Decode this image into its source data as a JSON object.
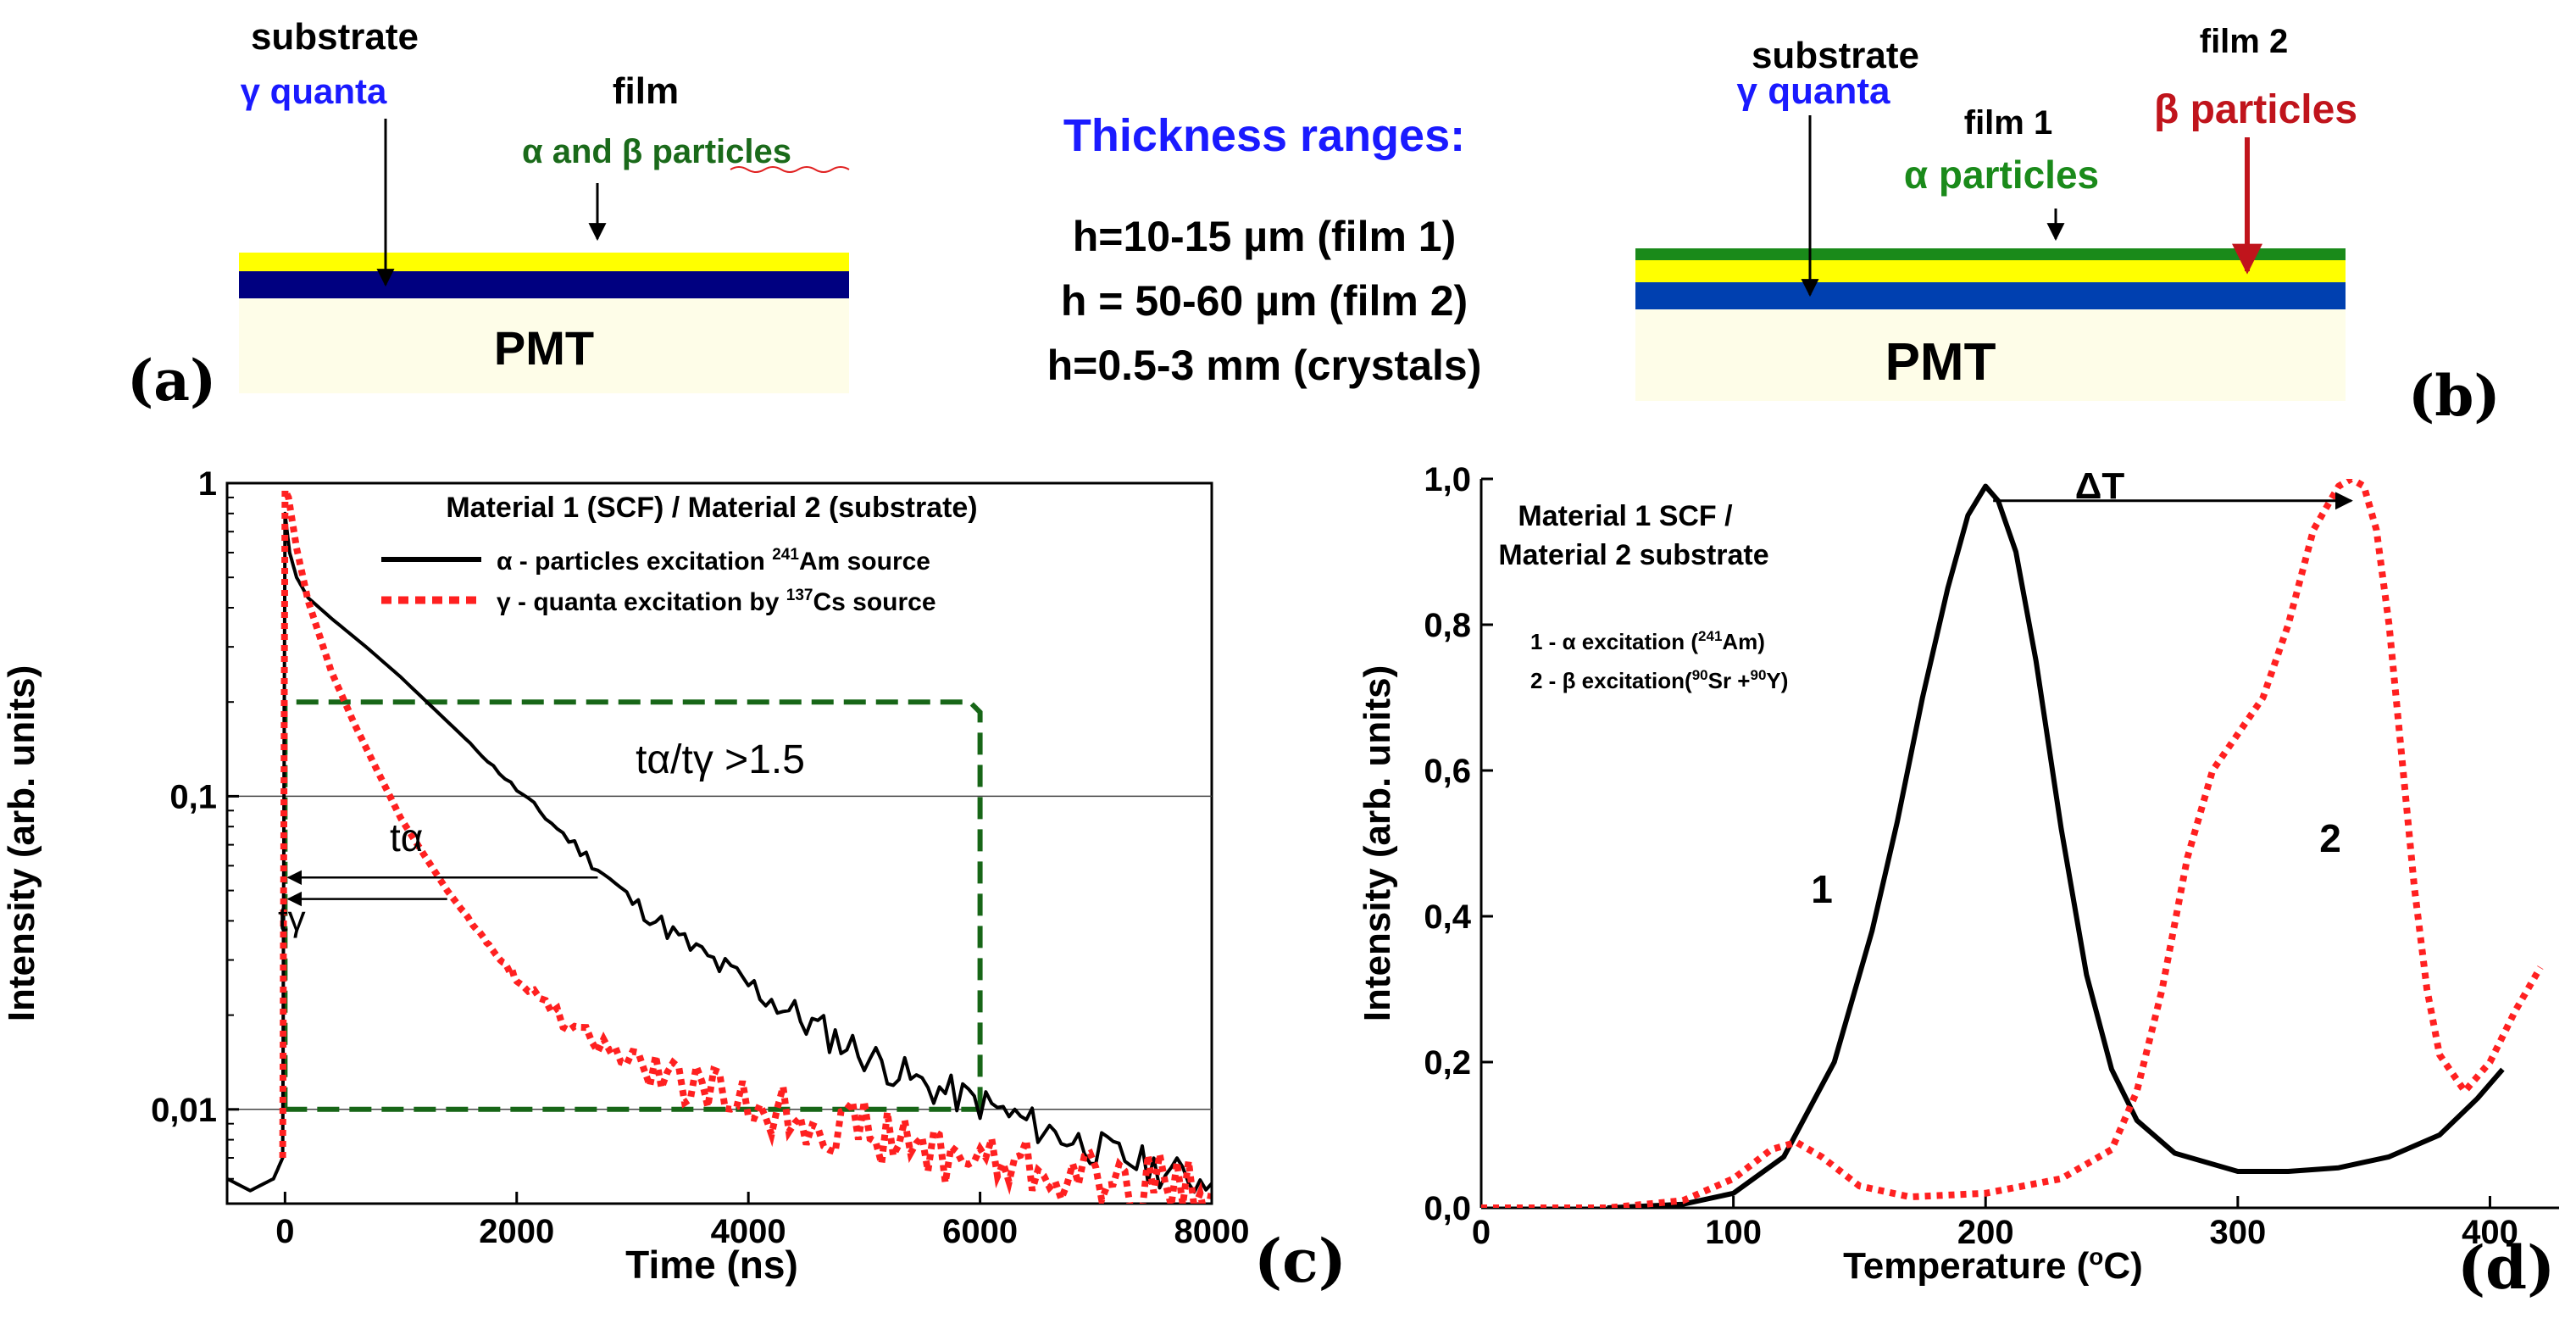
{
  "panel_a": {
    "label": "(a)",
    "substrate": "substrate",
    "gamma": "γ quanta",
    "film": "film",
    "alpha_beta": "α  and β particles",
    "pmt": "PMT"
  },
  "center": {
    "title": "Thickness ranges:",
    "lines": [
      "h=10-15 µm (film 1)",
      "h = 50-60 µm (film 2)",
      "h=0.5-3 mm (crystals)"
    ]
  },
  "panel_b": {
    "label": "(b)",
    "substrate": "substrate",
    "gamma": "γ quanta",
    "film1": "film 1",
    "film2": "film 2",
    "alpha": "α particles",
    "beta": "β particles",
    "pmt": "PMT"
  },
  "colors": {
    "blue_text": "#1a1aff",
    "green": "#1a8a1a",
    "red": "#c0141c",
    "yellow": "#ffff00",
    "navy": "#000080",
    "pmt": "#fefde8",
    "dash_green": "#176617",
    "red_curve": "#ff2020"
  },
  "chart_data": [
    {
      "id": "c",
      "type": "line",
      "panel_label": "(c)",
      "title": "Material 1 (SCF) / Material 2 (substrate)",
      "xlabel": "Time (ns)",
      "ylabel": "Intensity (arb. units)",
      "yscale": "log",
      "xlim": [
        -500,
        8000
      ],
      "ylim": [
        0.005,
        1
      ],
      "xticks": [
        0,
        2000,
        4000,
        6000,
        8000
      ],
      "xtick_labels": [
        "0",
        "2000",
        "4000",
        "6000",
        "8000"
      ],
      "yticks": [
        0.01,
        0.1,
        1
      ],
      "ytick_labels": [
        "0,01",
        "0,1",
        "1"
      ],
      "legend": [
        {
          "sym": "α",
          "pre": " - particles excitation ",
          "sup": "241",
          "post": "Am source",
          "style": "solid-black"
        },
        {
          "sym": "γ",
          "pre": " - quanta excitation by ",
          "sup": "137",
          "post": "Cs source",
          "style": "dotted-red"
        }
      ],
      "annotations": {
        "ratio": "tα/tγ >1.5",
        "t_alpha": "tα",
        "t_gamma": "tγ",
        "t_alpha_end_ns": 2700,
        "t_gamma_end_ns": 1400,
        "t_alpha_level": 0.055,
        "t_gamma_level": 0.05,
        "box_x": [
          0,
          6000
        ],
        "box_y": [
          0.01,
          0.2
        ]
      },
      "series": [
        {
          "name": "α - particles excitation 241Am source",
          "x": [
            -500,
            -300,
            -100,
            -20,
            0,
            40,
            100,
            200,
            400,
            700,
            1000,
            1500,
            2000,
            2500,
            3000,
            3500,
            4000,
            4500,
            5000,
            5500,
            6000,
            6500,
            7000,
            7500,
            8000
          ],
          "y": [
            0.006,
            0.0055,
            0.006,
            0.007,
            0.8,
            0.6,
            0.5,
            0.43,
            0.37,
            0.3,
            0.24,
            0.16,
            0.105,
            0.07,
            0.046,
            0.033,
            0.025,
            0.019,
            0.015,
            0.012,
            0.0105,
            0.0088,
            0.0075,
            0.0065,
            0.0058
          ]
        },
        {
          "name": "γ - quanta excitation by 137Cs source",
          "x": [
            -20,
            0,
            30,
            100,
            200,
            400,
            600,
            800,
            1000,
            1200,
            1400,
            1600,
            1800,
            2000,
            2500,
            3000,
            3500,
            4000,
            4500,
            5000,
            5500,
            6000,
            6500,
            7000,
            7500,
            8000
          ],
          "y": [
            0.007,
            0.95,
            0.9,
            0.62,
            0.42,
            0.25,
            0.17,
            0.12,
            0.085,
            0.065,
            0.05,
            0.04,
            0.032,
            0.026,
            0.018,
            0.014,
            0.012,
            0.0105,
            0.0095,
            0.0085,
            0.0075,
            0.007,
            0.0065,
            0.006,
            0.0058,
            0.0055
          ]
        }
      ]
    },
    {
      "id": "d",
      "type": "line",
      "panel_label": "(d)",
      "title_lines": [
        "Material 1 SCF /",
        "Material 2 substrate"
      ],
      "xlabel_pre": "Temperature (",
      "xlabel_sup": "o",
      "xlabel_post": "C)",
      "ylabel": "Intensity (arb. units)",
      "xlim": [
        0,
        420
      ],
      "ylim": [
        0,
        1.0
      ],
      "xticks": [
        0,
        100,
        200,
        300,
        400
      ],
      "xtick_labels": [
        "0",
        "100",
        "200",
        "300",
        "400"
      ],
      "yticks": [
        0,
        0.2,
        0.4,
        0.6,
        0.8,
        1.0
      ],
      "ytick_labels": [
        "0,0",
        "0,2",
        "0,4",
        "0,6",
        "0,8",
        "1,0"
      ],
      "legend": [
        {
          "pre": "1 - α excitation (",
          "sup": "241",
          "post": "Am)"
        },
        {
          "pre": "2 - β excitation(",
          "sup": "90",
          "mid": "Sr +",
          "sup2": "90",
          "post": "Y)"
        }
      ],
      "annotations": {
        "delta_t": "ΔT",
        "curve1": "1",
        "curve2": "2",
        "delta_level": 0.97,
        "delta_from": 203,
        "delta_to": 345
      },
      "series": [
        {
          "name": "1 - α excitation (241Am)",
          "x": [
            50,
            80,
            100,
            120,
            140,
            155,
            165,
            175,
            185,
            193,
            200,
            205,
            212,
            220,
            230,
            240,
            250,
            260,
            275,
            300,
            320,
            340,
            360,
            380,
            395,
            405
          ],
          "y": [
            0.0,
            0.005,
            0.02,
            0.07,
            0.2,
            0.38,
            0.53,
            0.7,
            0.85,
            0.95,
            0.99,
            0.97,
            0.9,
            0.75,
            0.52,
            0.32,
            0.19,
            0.12,
            0.075,
            0.05,
            0.05,
            0.055,
            0.07,
            0.1,
            0.15,
            0.19
          ]
        },
        {
          "name": "2 - β excitation(90Sr +90Y)",
          "x": [
            0,
            50,
            80,
            100,
            115,
            125,
            135,
            150,
            170,
            200,
            230,
            250,
            260,
            270,
            280,
            290,
            300,
            310,
            320,
            330,
            340,
            345,
            350,
            355,
            360,
            365,
            370,
            375,
            380,
            390,
            400,
            410,
            420
          ],
          "y": [
            0.0,
            0.0,
            0.01,
            0.04,
            0.08,
            0.09,
            0.07,
            0.03,
            0.015,
            0.02,
            0.04,
            0.08,
            0.16,
            0.3,
            0.48,
            0.6,
            0.65,
            0.7,
            0.8,
            0.93,
            0.99,
            1.0,
            0.99,
            0.93,
            0.8,
            0.62,
            0.44,
            0.3,
            0.21,
            0.16,
            0.2,
            0.27,
            0.33
          ]
        }
      ]
    }
  ]
}
